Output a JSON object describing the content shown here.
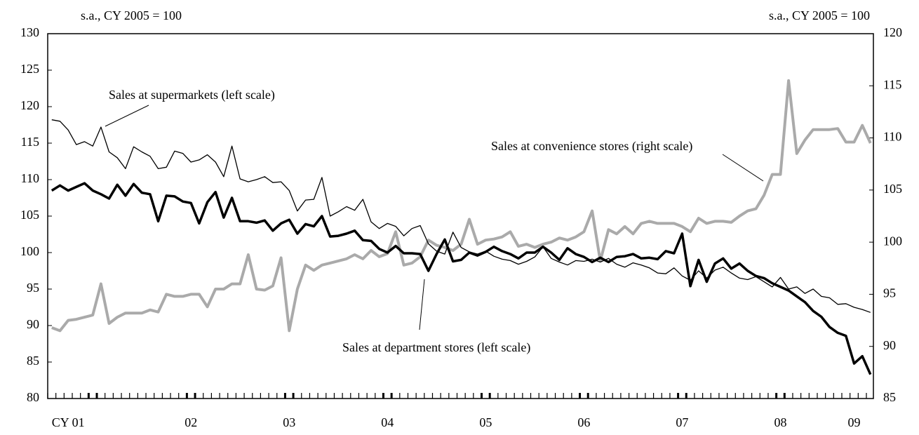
{
  "chart_data": {
    "type": "line",
    "y_label": "s.a., CY 2005 = 100",
    "y2_label": "s.a., CY 2005 = 100",
    "categories": [
      null,
      null,
      "CY 01",
      null,
      null,
      null,
      null,
      null,
      null,
      null,
      null,
      null,
      null,
      null,
      null,
      null,
      null,
      "02",
      null,
      null,
      null,
      null,
      null,
      null,
      null,
      null,
      null,
      null,
      null,
      "03",
      null,
      null,
      null,
      null,
      null,
      null,
      null,
      null,
      null,
      null,
      null,
      "04",
      null,
      null,
      null,
      null,
      null,
      null,
      null,
      null,
      null,
      null,
      null,
      "05",
      null,
      null,
      null,
      null,
      null,
      null,
      null,
      null,
      null,
      null,
      null,
      "06",
      null,
      null,
      null,
      null,
      null,
      null,
      null,
      null,
      null,
      null,
      null,
      "07",
      null,
      null,
      null,
      null,
      null,
      null,
      null,
      null,
      null,
      null,
      null,
      "08",
      null,
      null,
      null,
      null,
      null,
      null,
      null,
      null,
      "09",
      null,
      null
    ],
    "ylim": [
      80,
      130
    ],
    "yticks": [
      80,
      85,
      90,
      95,
      100,
      105,
      110,
      115,
      120,
      125,
      130
    ],
    "y2lim": [
      85,
      120
    ],
    "y2ticks": [
      85,
      90,
      95,
      100,
      105,
      110,
      115,
      120
    ],
    "series": [
      {
        "name": "Sales at supermarkets (left scale)",
        "color": "#000000",
        "width": 1.3,
        "values": [
          118.2,
          118,
          116.8,
          114.8,
          115.2,
          114.6,
          117.2,
          113.8,
          113,
          111.5,
          114.5,
          113.8,
          113.2,
          111.5,
          111.7,
          113.9,
          113.6,
          112.4,
          112.7,
          113.4,
          112.4,
          110.4,
          114.6,
          110.1,
          109.7,
          110,
          110.4,
          109.6,
          109.7,
          108.5,
          105.7,
          107.2,
          107.3,
          110.3,
          105,
          105.6,
          106.3,
          105.8,
          107.3,
          104.2,
          103.3,
          104,
          103.6,
          102.3,
          103.3,
          103.7,
          101.2,
          100.2,
          99.8,
          102.8,
          100.7,
          100.1,
          99.8,
          100.2,
          99.5,
          99.1,
          98.9,
          98.4,
          98.8,
          99.4,
          100.8,
          99.2,
          98.7,
          98.3,
          98.9,
          98.8,
          99.1,
          98.7,
          99.2,
          98.4,
          98,
          98.6,
          98.3,
          97.9,
          97.2,
          97.1,
          97.9,
          96.8,
          96.2,
          97.5,
          96.5,
          97.6,
          98,
          97.2,
          96.5,
          96.3,
          96.7,
          96,
          95.3,
          96.6,
          95,
          95.3,
          94.4,
          95,
          94,
          93.8,
          92.9,
          93,
          92.5,
          92.2,
          91.8
        ]
      },
      {
        "name": "Sales at department stores (left scale)",
        "color": "#000000",
        "width": 3.5,
        "values": [
          108.5,
          109.2,
          108.5,
          109,
          109.5,
          108.5,
          108,
          107.4,
          109.3,
          107.8,
          109.4,
          108.2,
          108,
          104.3,
          107.8,
          107.7,
          107,
          106.8,
          104,
          106.9,
          108.3,
          104.8,
          107.5,
          104.3,
          104.3,
          104.1,
          104.4,
          103,
          104,
          104.5,
          102.6,
          103.9,
          103.6,
          105,
          102.2,
          102.3,
          102.6,
          103,
          101.7,
          101.6,
          100.5,
          100,
          100.9,
          99.9,
          99.9,
          99.8,
          97.5,
          99.8,
          101.8,
          98.8,
          99,
          100,
          99.6,
          100.1,
          100.8,
          100.2,
          99.8,
          99.2,
          100,
          100,
          100.8,
          100,
          99,
          100.6,
          99.8,
          99.4,
          98.7,
          99.3,
          98.7,
          99.4,
          99.5,
          99.8,
          99.2,
          99.3,
          99.1,
          100.2,
          99.9,
          102.6,
          95.4,
          99,
          96,
          98.5,
          99.2,
          97.8,
          98.5,
          97.5,
          96.8,
          96.5,
          95.8,
          95.3,
          94.8,
          94,
          93.2,
          92,
          91.2,
          89.8,
          89,
          88.6,
          84.8,
          85.8,
          83.3
        ]
      },
      {
        "name": "Sales at convenience stores (right scale)",
        "color": "#aaaaaa",
        "width": 4,
        "axis": "y2",
        "values": [
          91.8,
          91.5,
          92.5,
          92.6,
          92.8,
          93,
          96,
          92.2,
          92.8,
          93.2,
          93.2,
          93.2,
          93.5,
          93.3,
          95,
          94.8,
          94.8,
          95,
          95,
          93.8,
          95.5,
          95.5,
          96,
          96,
          98.8,
          95.5,
          95.4,
          95.8,
          98.5,
          91.5,
          95.5,
          97.8,
          97.3,
          97.8,
          98,
          98.2,
          98.4,
          98.8,
          98.4,
          99.2,
          98.6,
          98.9,
          101,
          97.8,
          98,
          98.6,
          100.2,
          99.7,
          99.5,
          99.2,
          99.8,
          102.2,
          99.8,
          100.2,
          100.3,
          100.5,
          101,
          99.6,
          99.8,
          99.5,
          99.8,
          100,
          100.4,
          100.2,
          100.5,
          101,
          103,
          98.2,
          101.2,
          100.8,
          101.5,
          100.8,
          101.8,
          102,
          101.8,
          101.8,
          101.8,
          101.5,
          101,
          102.3,
          101.8,
          102,
          102,
          101.9,
          102.5,
          103,
          103.2,
          104.5,
          106.5,
          106.5,
          115.5,
          108.5,
          109.8,
          110.8,
          110.8,
          110.8,
          110.9,
          109.6,
          109.6,
          111.2,
          109.5
        ]
      }
    ]
  }
}
